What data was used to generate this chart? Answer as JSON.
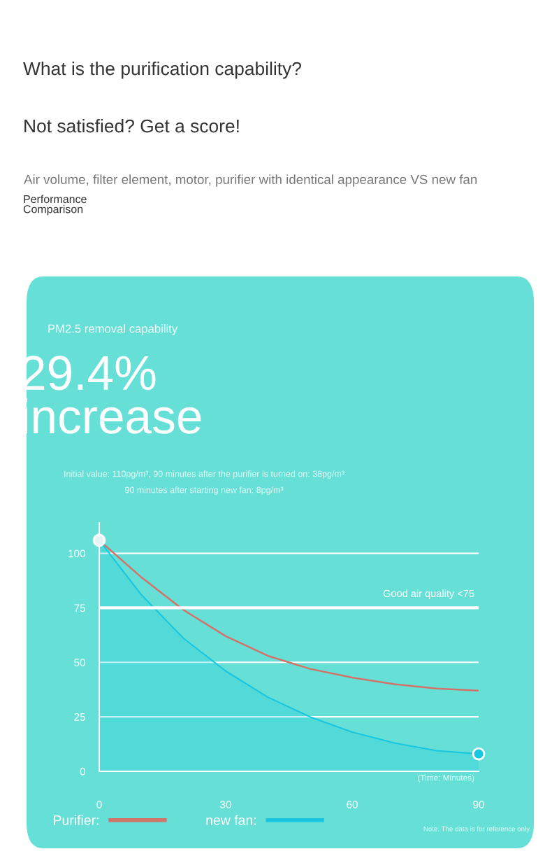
{
  "chart_data": {
    "type": "line",
    "title": "What is the purification capability?",
    "subtitle": "Not satisfied? Get a score!",
    "xlabel": "(Time: Minutes)",
    "annotations": [
      "Air volume, filter element, motor, purifier with identical appearance VS new fan",
      "Performance Comparison",
      "PM2.5 removal capability",
      "29.4% increase",
      "Initial value: 110pg/m³, 90 minutes after the purifier is turned on: 38pg/m³",
      "90 minutes after starting new fan: 8pg/m³",
      "Note: The data is for reference only."
    ],
    "x": [
      0,
      10,
      20,
      30,
      40,
      50,
      60,
      70,
      80,
      90
    ],
    "series": [
      {
        "name": "Purifier:",
        "color": "#d2736a",
        "values": [
          106,
          89,
          74,
          62,
          53,
          47,
          43,
          40,
          38,
          37
        ]
      },
      {
        "name": "new fan:",
        "type": "area",
        "color": "#19c6e0",
        "values": [
          106,
          81,
          61,
          46,
          34,
          25,
          18,
          13,
          9.5,
          8
        ]
      },
      {
        "type": "scatter",
        "marker": "circle",
        "color": "#e8f4f4",
        "x": [
          0
        ],
        "values": [
          106
        ]
      },
      {
        "type": "scatter",
        "marker": "circle",
        "color": "#19c6e0",
        "x": [
          90
        ],
        "values": [
          8
        ]
      }
    ],
    "ref_lines": [
      {
        "axis": "y",
        "value": 75,
        "label": "Good air quality <75",
        "color": "#ffffff"
      }
    ],
    "xlim": [
      0,
      90
    ],
    "xticks": [
      0,
      30,
      60,
      90
    ],
    "ylim": [
      0,
      114
    ],
    "yticks": [
      0,
      25,
      50,
      75,
      100
    ],
    "grid": "y",
    "legend": "bottom",
    "marker": "none",
    "line_style": "solid"
  }
}
